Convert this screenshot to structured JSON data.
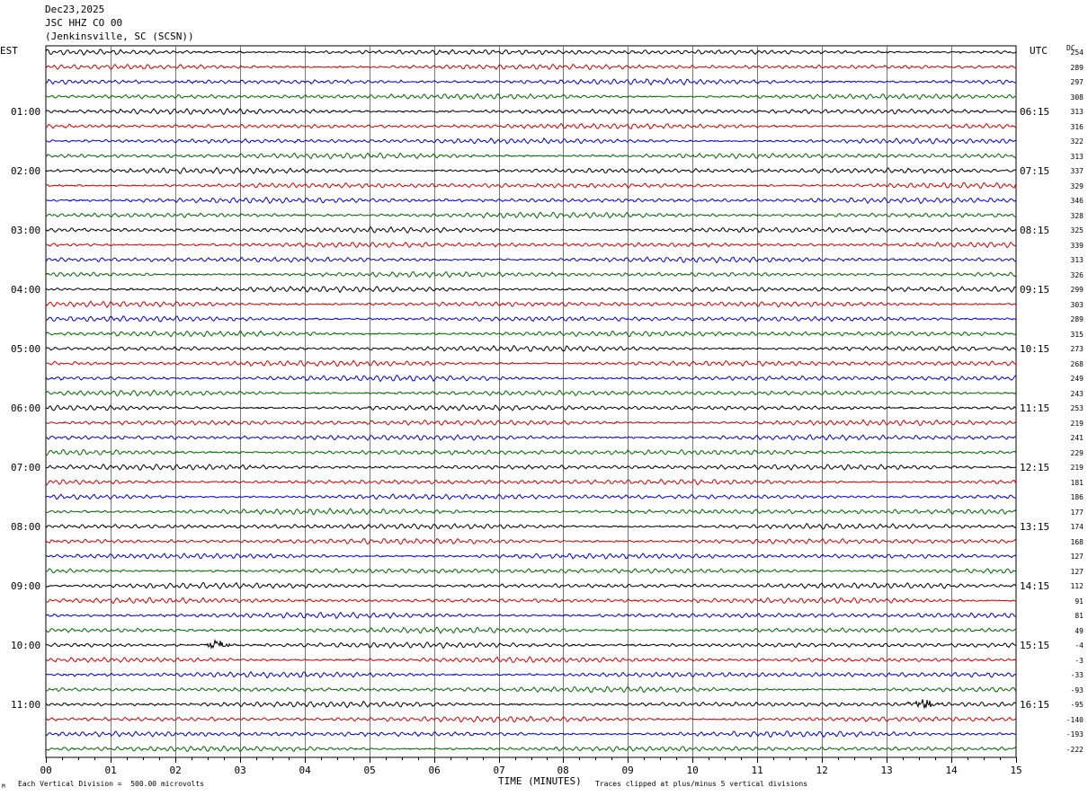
{
  "header": {
    "date": "Dec23,2025",
    "station": "JSC HHZ CO 00",
    "location": "(Jenkinsville, SC (SCSN))"
  },
  "left_zone": "EST",
  "right_zone": "UTC",
  "dc_label": "DC",
  "footer": {
    "xlabel": "TIME (MINUTES)",
    "scale_note": "Each Vertical Division =  500.00 microvolts",
    "clip_note": "Traces clipped at plus/minus 5 vertical divisions",
    "corner_mark": "M"
  },
  "chart_data": {
    "type": "line",
    "x_range": [
      0,
      15
    ],
    "x_ticks": [
      "00",
      "01",
      "02",
      "03",
      "04",
      "05",
      "06",
      "07",
      "08",
      "09",
      "10",
      "11",
      "12",
      "13",
      "14",
      "15"
    ],
    "trace_colors": [
      "#000000",
      "#cc0000",
      "#0000cc",
      "#006600"
    ],
    "grid": "vertical lines every minute",
    "hour_labels_est": [
      "01:00",
      "02:00",
      "03:00",
      "04:00",
      "05:00",
      "06:00",
      "07:00",
      "08:00",
      "09:00",
      "10:00",
      "11:00"
    ],
    "hour_labels_utc": [
      "06:15",
      "07:15",
      "08:15",
      "09:15",
      "10:15",
      "11:15",
      "12:15",
      "13:15",
      "14:15",
      "15:15",
      "16:15"
    ],
    "dc_offsets": [
      254,
      289,
      297,
      308,
      313,
      316,
      322,
      313,
      337,
      329,
      346,
      328,
      325,
      339,
      313,
      326,
      299,
      303,
      289,
      315,
      273,
      268,
      249,
      243,
      253,
      219,
      241,
      229,
      219,
      181,
      186,
      177,
      174,
      168,
      127,
      127,
      112,
      91,
      81,
      49,
      -4,
      -3,
      -33,
      -93,
      -95,
      -140,
      -193,
      -222
    ],
    "events": [
      {
        "trace_index": 40,
        "minute_start": 2.4,
        "minute_end": 2.9
      },
      {
        "trace_index": 44,
        "minute_start": 13.2,
        "minute_end": 13.9
      }
    ]
  }
}
